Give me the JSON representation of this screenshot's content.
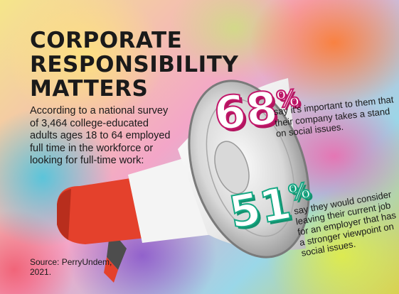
{
  "title_lines": [
    "CORPORATE",
    "RESPONSIBILITY",
    "MATTERS"
  ],
  "survey_text": "According to a national survey of 3,464 college-educated adults ages 18 to 64 employed full time in the workforce or looking for full-time work:",
  "stats": [
    {
      "value": "68",
      "percent_sign": "%",
      "text": "say it's important to them that their company takes a stand on social issues.",
      "color": "#c2186b"
    },
    {
      "value": "51",
      "percent_sign": "%",
      "text": "say they would consider leaving their current job for an employer that has a stronger viewpoint on social issues.",
      "color": "#17a884"
    }
  ],
  "source": "Source: PerryUndem, 2021.",
  "colors": {
    "text": "#1a1a1a",
    "megaphone_red": "#e4412c",
    "megaphone_white": "#f4f4f4",
    "megaphone_grey": "#9a9a9a"
  },
  "icons": [
    "megaphone-icon"
  ]
}
